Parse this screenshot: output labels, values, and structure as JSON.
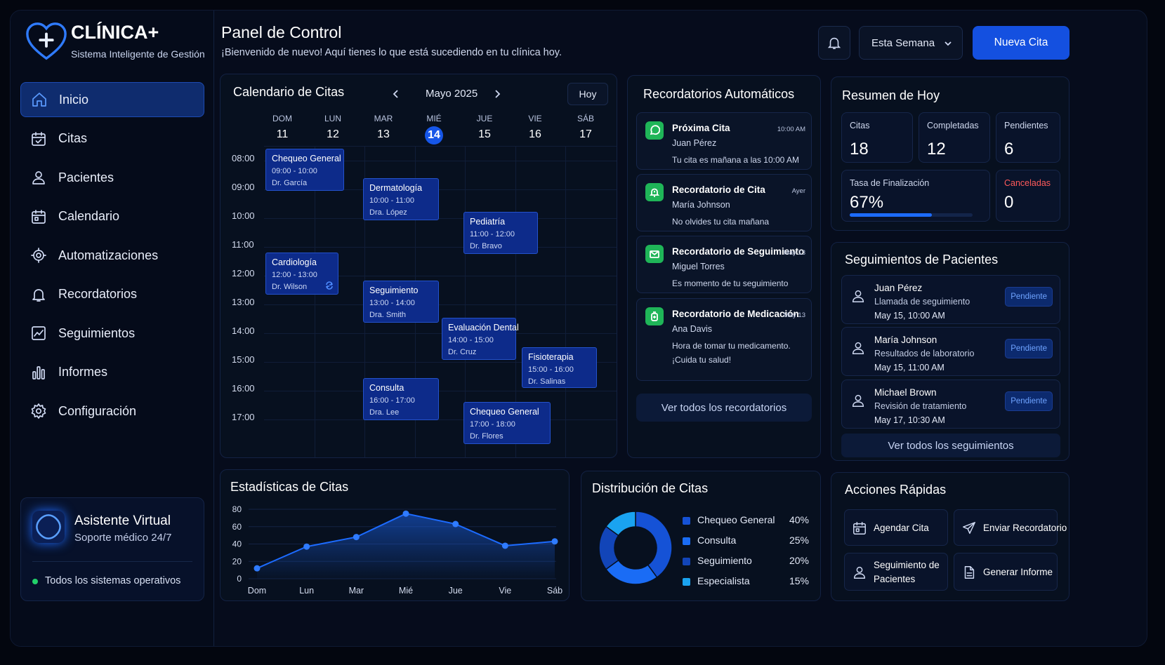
{
  "brand": {
    "title": "CLÍNICA+",
    "subtitle": "Sistema Inteligente de Gestión"
  },
  "nav": [
    {
      "label": "Inicio",
      "icon": "home-icon"
    },
    {
      "label": "Citas",
      "icon": "calendar-check-icon"
    },
    {
      "label": "Pacientes",
      "icon": "user-icon"
    },
    {
      "label": "Calendario",
      "icon": "calendar-icon"
    },
    {
      "label": "Automatizaciones",
      "icon": "gear-target-icon"
    },
    {
      "label": "Recordatorios",
      "icon": "bell-icon"
    },
    {
      "label": "Seguimientos",
      "icon": "chart-line-icon"
    },
    {
      "label": "Informes",
      "icon": "bar-chart-icon"
    },
    {
      "label": "Configuración",
      "icon": "gear-icon"
    }
  ],
  "assistant": {
    "title": "Asistente Virtual",
    "subtitle": "Soporte médico 24/7",
    "status": "Todos los sistemas operativos"
  },
  "header": {
    "title": "Panel de Control",
    "subtitle": "¡Bienvenido de nuevo! Aquí tienes lo que está sucediendo en tu clínica hoy.",
    "period": "Esta Semana",
    "new_button": "Nueva Cita"
  },
  "calendar": {
    "title": "Calendario de Citas",
    "month": "Mayo 2025",
    "today_button": "Hoy",
    "days": [
      {
        "name": "DOM",
        "num": "11"
      },
      {
        "name": "LUN",
        "num": "12"
      },
      {
        "name": "MAR",
        "num": "13"
      },
      {
        "name": "MIÉ",
        "num": "14",
        "today": true
      },
      {
        "name": "JUE",
        "num": "15"
      },
      {
        "name": "VIE",
        "num": "16"
      },
      {
        "name": "SÁB",
        "num": "17"
      }
    ],
    "hours": [
      "08:00",
      "09:00",
      "10:00",
      "11:00",
      "12:00",
      "13:00",
      "14:00",
      "15:00",
      "16:00",
      "17:00"
    ],
    "events": [
      {
        "title": "Chequeo General",
        "time": "09:00 - 10:00",
        "doctor": "Dr. García"
      },
      {
        "title": "Dermatología",
        "time": "10:00 - 11:00",
        "doctor": "Dra. López"
      },
      {
        "title": "Pediatría",
        "time": "11:00 - 12:00",
        "doctor": "Dr. Bravo"
      },
      {
        "title": "Cardiología",
        "time": "12:00 - 13:00",
        "doctor": "Dr. Wilson"
      },
      {
        "title": "Seguimiento",
        "time": "13:00 - 14:00",
        "doctor": "Dra. Smith"
      },
      {
        "title": "Evaluación Dental",
        "time": "14:00 - 15:00",
        "doctor": "Dr. Cruz"
      },
      {
        "title": "Fisioterapia",
        "time": "15:00 - 16:00",
        "doctor": "Dr. Salinas"
      },
      {
        "title": "Consulta",
        "time": "16:00 - 17:00",
        "doctor": "Dra. Lee"
      },
      {
        "title": "Chequeo General",
        "time": "17:00 - 18:00",
        "doctor": "Dr. Flores"
      }
    ]
  },
  "reminders": {
    "title": "Recordatorios Automáticos",
    "items": [
      {
        "title": "Próxima Cita",
        "time": "10:00 AM",
        "name": "Juan Pérez",
        "message": "Tu cita es mañana a las 10:00 AM",
        "icon": "whatsapp-icon"
      },
      {
        "title": "Recordatorio de Cita",
        "time": "Ayer",
        "name": "María Johnson",
        "message": "No olvides tu cita mañana",
        "icon": "bell-alert-icon"
      },
      {
        "title": "Recordatorio de Seguimiento",
        "time": "May 13",
        "name": "Miguel Torres",
        "message": "Es momento de tu seguimiento",
        "icon": "mail-icon"
      },
      {
        "title": "Recordatorio de Medicación",
        "time": "May 13",
        "name": "Ana Davis",
        "message": "Hora de tomar tu medicamento. ¡Cuida tu salud!",
        "icon": "medication-icon"
      }
    ],
    "view_all": "Ver todos los recordatorios"
  },
  "summary": {
    "title": "Resumen de Hoy",
    "citas": {
      "label": "Citas",
      "value": "18"
    },
    "completadas": {
      "label": "Completadas",
      "value": "12"
    },
    "pendientes": {
      "label": "Pendientes",
      "value": "6"
    },
    "tasa": {
      "label": "Tasa de Finalización",
      "value": "67%",
      "fraction": 0.67
    },
    "canceladas": {
      "label": "Canceladas",
      "value": "0"
    }
  },
  "followups": {
    "title": "Seguimientos de Pacientes",
    "items": [
      {
        "name": "Juan Pérez",
        "desc": "Llamada de seguimiento",
        "date": "May 15, 10:00 AM",
        "status": "Pendiente"
      },
      {
        "name": "María Johnson",
        "desc": "Resultados de laboratorio",
        "date": "May 15, 11:00 AM",
        "status": "Pendiente"
      },
      {
        "name": "Michael Brown",
        "desc": "Revisión de tratamiento",
        "date": "May 17, 10:30 AM",
        "status": "Pendiente"
      }
    ],
    "view_all": "Ver todos los seguimientos"
  },
  "chart_data": [
    {
      "type": "area",
      "title": "Estadísticas de Citas",
      "categories": [
        "Dom",
        "Lun",
        "Mar",
        "Mié",
        "Jue",
        "Vie",
        "Sáb"
      ],
      "series": [
        {
          "values": [
            12,
            37,
            48,
            75,
            63,
            38,
            43
          ]
        }
      ],
      "ylim": [
        0,
        80
      ],
      "yticks": [
        0,
        20,
        40,
        60,
        80
      ],
      "grid": true,
      "color": "#1c6bff"
    },
    {
      "type": "pie",
      "title": "Distribución de Citas",
      "categories": [
        "Chequeo General",
        "Consulta",
        "Seguimiento",
        "Especialista"
      ],
      "values": [
        40,
        25,
        20,
        15
      ],
      "labels": [
        "40%",
        "25%",
        "20%",
        "15%"
      ],
      "colors": [
        "#1552d6",
        "#1a6cf5",
        "#1245b8",
        "#1aa3f0"
      ],
      "legend": "right"
    }
  ],
  "quick_actions": {
    "title": "Acciones Rápidas",
    "items": [
      {
        "label": "Agendar Cita",
        "icon": "calendar-icon"
      },
      {
        "label": "Enviar Recordatorio",
        "icon": "send-icon"
      },
      {
        "label": "Seguimiento de Pacientes",
        "icon": "user-icon"
      },
      {
        "label": "Generar Informe",
        "icon": "document-icon"
      }
    ]
  }
}
